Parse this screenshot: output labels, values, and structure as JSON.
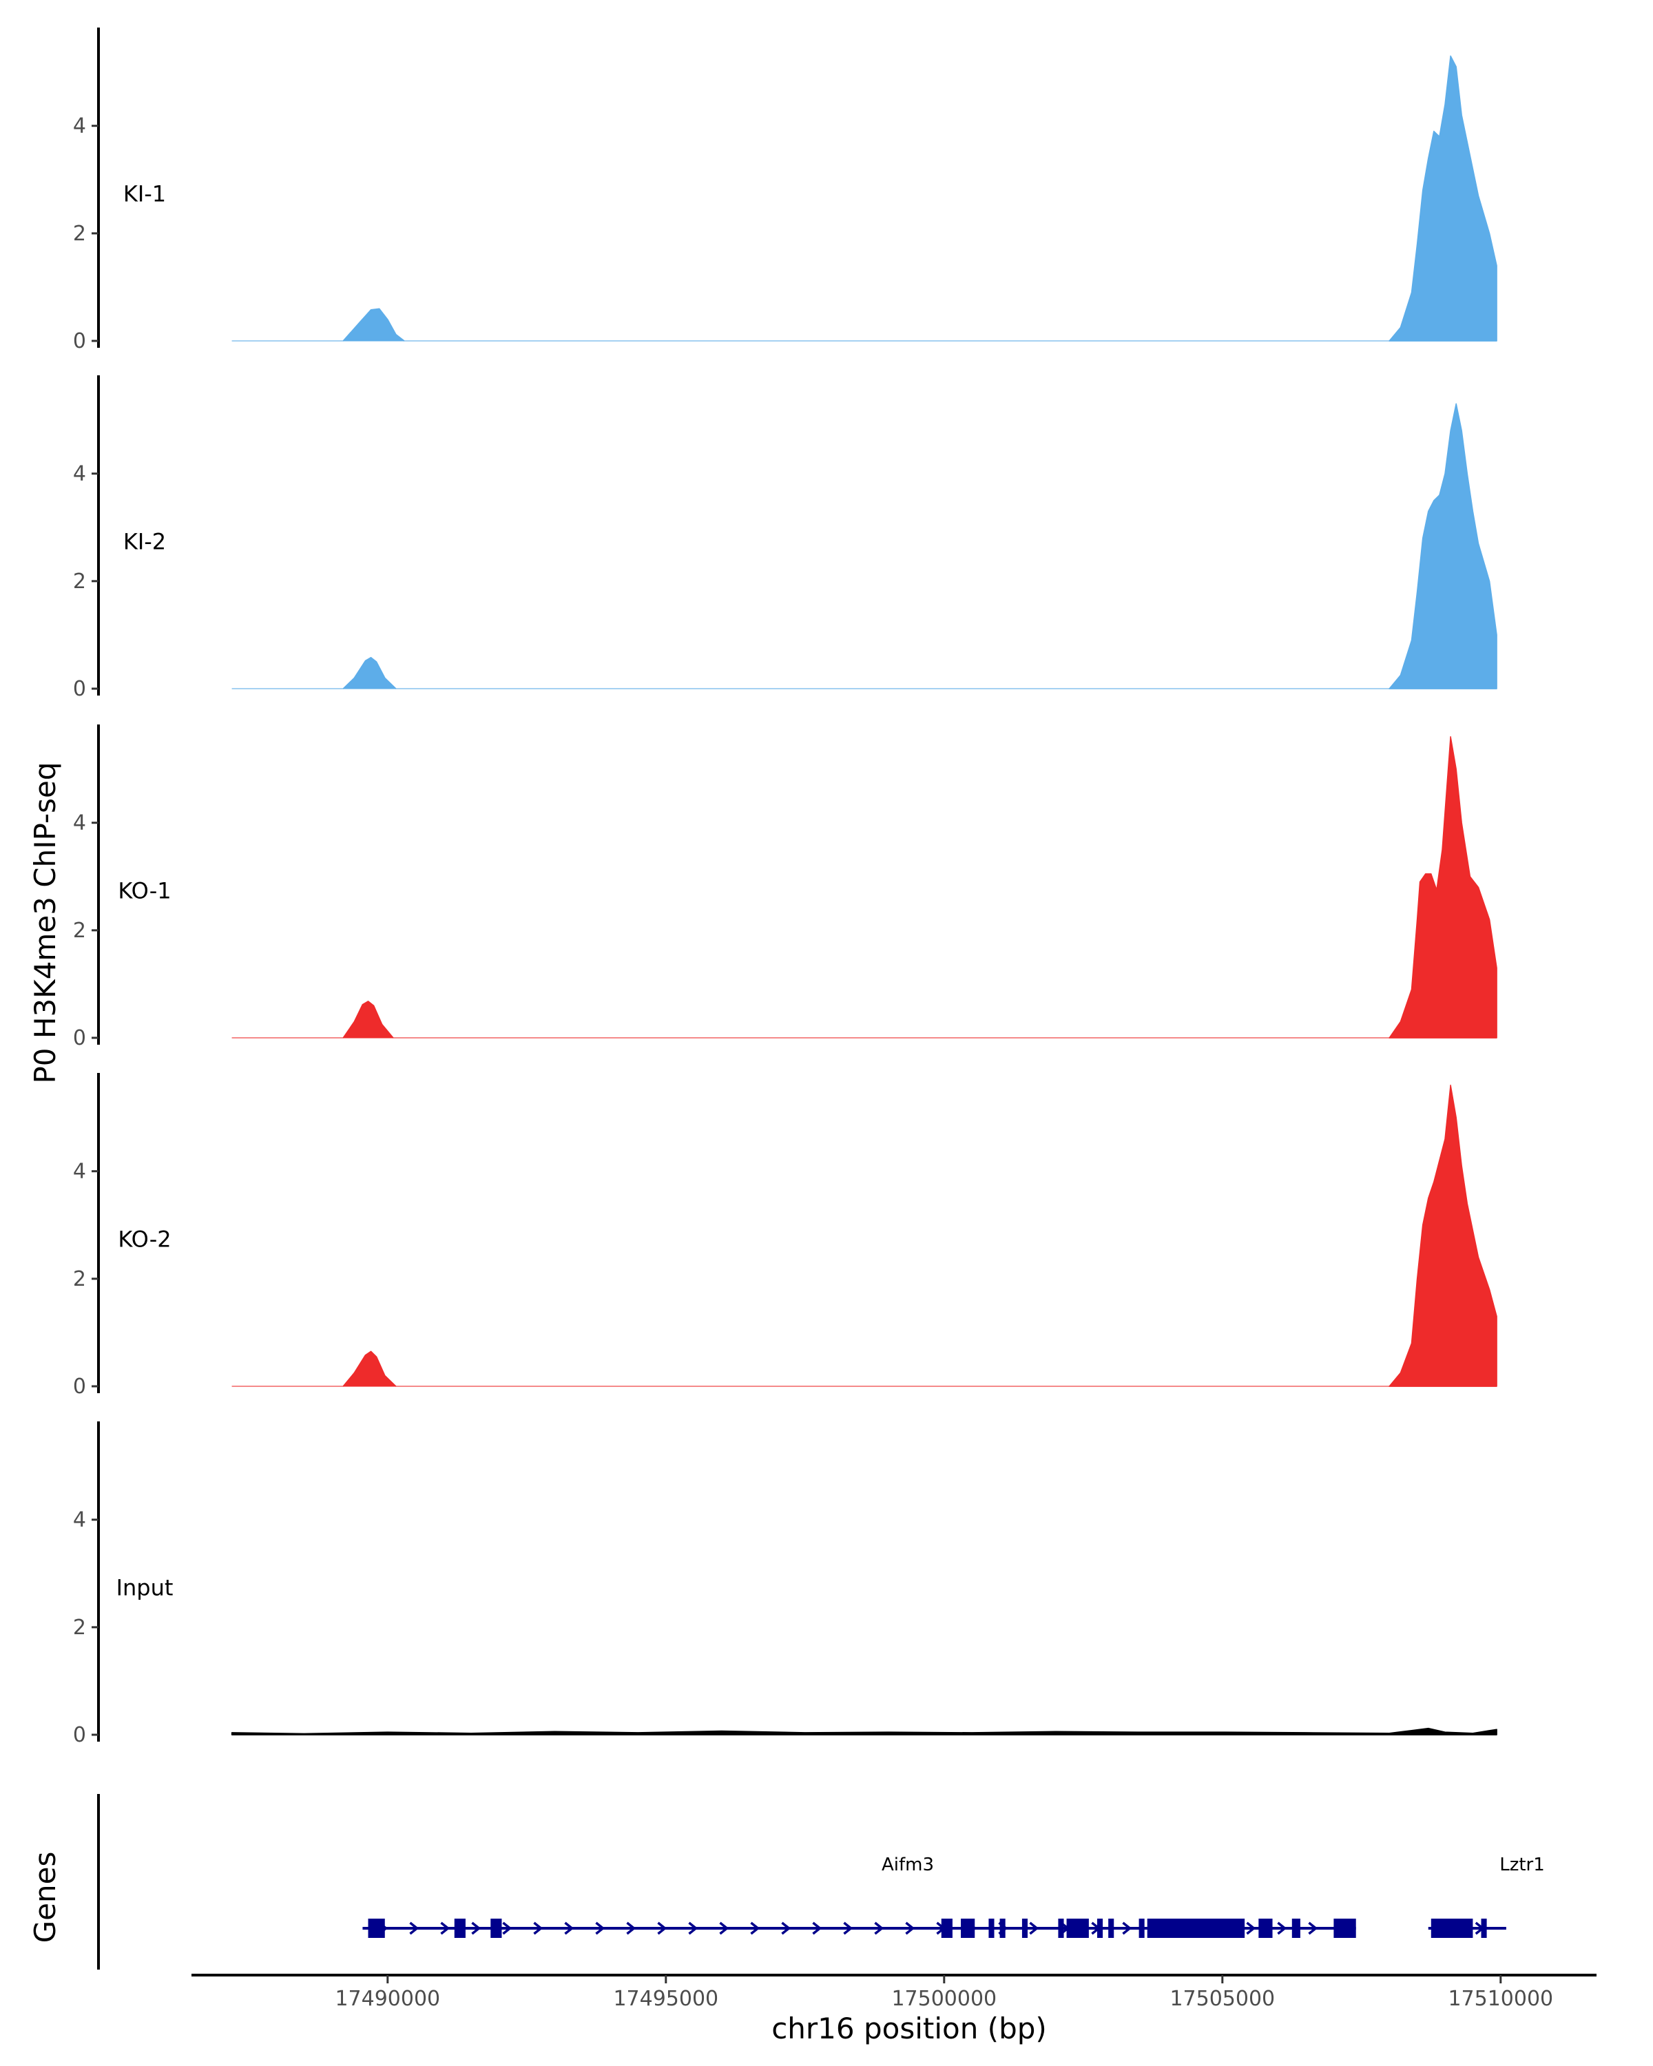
{
  "chart_data": {
    "type": "area",
    "ylabel": "P0 H3K4me3 ChIP-seq",
    "xlabel": "chr16 position (bp)",
    "genes_label": "Genes",
    "x_range": [
      17486500,
      17511500
    ],
    "ylim": [
      0,
      5.7
    ],
    "y_ticks": [
      0,
      2,
      4
    ],
    "y_tick_labels": [
      "0",
      "2",
      "4"
    ],
    "x_ticks": [
      17490000,
      17495000,
      17500000,
      17505000,
      17510000
    ],
    "x_tick_labels": [
      "17490000",
      "17495000",
      "17500000",
      "17505000",
      "17510000"
    ],
    "colors": {
      "KI": "#5dade9",
      "KO": "#ee2b2b",
      "Input": "#000000",
      "gene": "#00008b"
    },
    "tracks": [
      {
        "name": "KI-1",
        "color": "#5dade9",
        "x": [
          17489200,
          17489500,
          17489700,
          17489850,
          17490000,
          17490150,
          17490300,
          17508000,
          17508200,
          17508400,
          17508500,
          17508600,
          17508700,
          17508800,
          17508900,
          17509000,
          17509100,
          17509200,
          17509300,
          17509400,
          17509500,
          17509600,
          17509800,
          17509930
        ],
        "y": [
          0,
          0.35,
          0.58,
          0.6,
          0.4,
          0.12,
          0,
          0,
          0.25,
          0.9,
          1.8,
          2.8,
          3.4,
          3.9,
          3.8,
          4.4,
          5.3,
          5.1,
          4.2,
          3.7,
          3.2,
          2.7,
          2.0,
          1.4
        ]
      },
      {
        "name": "KI-2",
        "color": "#5dade9",
        "x": [
          17489200,
          17489400,
          17489600,
          17489700,
          17489800,
          17489950,
          17490150,
          17508000,
          17508200,
          17508400,
          17508500,
          17508600,
          17508700,
          17508800,
          17508900,
          17509000,
          17509100,
          17509200,
          17509300,
          17509400,
          17509500,
          17509600,
          17509800,
          17509930
        ],
        "y": [
          0,
          0.2,
          0.52,
          0.58,
          0.5,
          0.2,
          0,
          0,
          0.25,
          0.9,
          1.8,
          2.8,
          3.3,
          3.5,
          3.6,
          4.0,
          4.8,
          5.3,
          4.8,
          4.0,
          3.3,
          2.7,
          2.0,
          1.0
        ]
      },
      {
        "name": "KO-1",
        "color": "#ee2b2b",
        "x": [
          17489200,
          17489400,
          17489550,
          17489650,
          17489750,
          17489900,
          17490100,
          17508000,
          17508200,
          17508400,
          17508500,
          17508550,
          17508650,
          17508750,
          17508850,
          17508950,
          17509000,
          17509100,
          17509200,
          17509300,
          17509450,
          17509600,
          17509800,
          17509930
        ],
        "y": [
          0,
          0.3,
          0.62,
          0.68,
          0.6,
          0.25,
          0,
          0,
          0.3,
          0.9,
          2.2,
          2.9,
          3.05,
          3.05,
          2.75,
          3.5,
          4.2,
          5.6,
          5.0,
          4.0,
          3.0,
          2.8,
          2.2,
          1.3
        ]
      },
      {
        "name": "KO-2",
        "color": "#ee2b2b",
        "x": [
          17489200,
          17489400,
          17489600,
          17489700,
          17489800,
          17489950,
          17490150,
          17508000,
          17508200,
          17508400,
          17508500,
          17508600,
          17508700,
          17508800,
          17508900,
          17509000,
          17509100,
          17509200,
          17509300,
          17509400,
          17509500,
          17509600,
          17509800,
          17509930
        ],
        "y": [
          0,
          0.25,
          0.58,
          0.65,
          0.55,
          0.2,
          0,
          0,
          0.25,
          0.8,
          2.0,
          3.0,
          3.5,
          3.8,
          4.2,
          4.6,
          5.6,
          5.0,
          4.1,
          3.4,
          2.9,
          2.4,
          1.8,
          1.3
        ]
      },
      {
        "name": "Input",
        "color": "#000000",
        "x": [
          17487200,
          17488500,
          17490000,
          17491500,
          17493000,
          17494500,
          17496000,
          17497500,
          17499000,
          17500500,
          17502000,
          17503500,
          17505000,
          17506500,
          17508000,
          17508400,
          17508700,
          17509000,
          17509500,
          17509750,
          17509930
        ],
        "y": [
          0.04,
          0.02,
          0.05,
          0.03,
          0.06,
          0.04,
          0.07,
          0.04,
          0.05,
          0.04,
          0.06,
          0.05,
          0.05,
          0.04,
          0.03,
          0.08,
          0.12,
          0.05,
          0.03,
          0.07,
          0.1
        ]
      }
    ],
    "genes": [
      {
        "name": "Aifm3",
        "start": 17489550,
        "end": 17507400,
        "strand": "+",
        "exons": [
          [
            17489650,
            17489950
          ],
          [
            17491200,
            17491400
          ],
          [
            17491850,
            17492050
          ],
          [
            17499950,
            17500150
          ],
          [
            17500300,
            17500550
          ],
          [
            17500800,
            17500900
          ],
          [
            17501000,
            17501100
          ],
          [
            17501400,
            17501500
          ],
          [
            17502050,
            17502150
          ],
          [
            17502200,
            17502600
          ],
          [
            17502750,
            17502850
          ],
          [
            17502950,
            17503050
          ],
          [
            17503500,
            17503600
          ],
          [
            17503650,
            17505400
          ],
          [
            17505650,
            17505900
          ],
          [
            17506250,
            17506400
          ],
          [
            17507000,
            17507400
          ]
        ]
      },
      {
        "name": "Lztr1",
        "start": 17508700,
        "end": 17510100,
        "strand": "+",
        "exons": [
          [
            17508750,
            17509500
          ],
          [
            17509650,
            17509750
          ]
        ]
      }
    ]
  }
}
